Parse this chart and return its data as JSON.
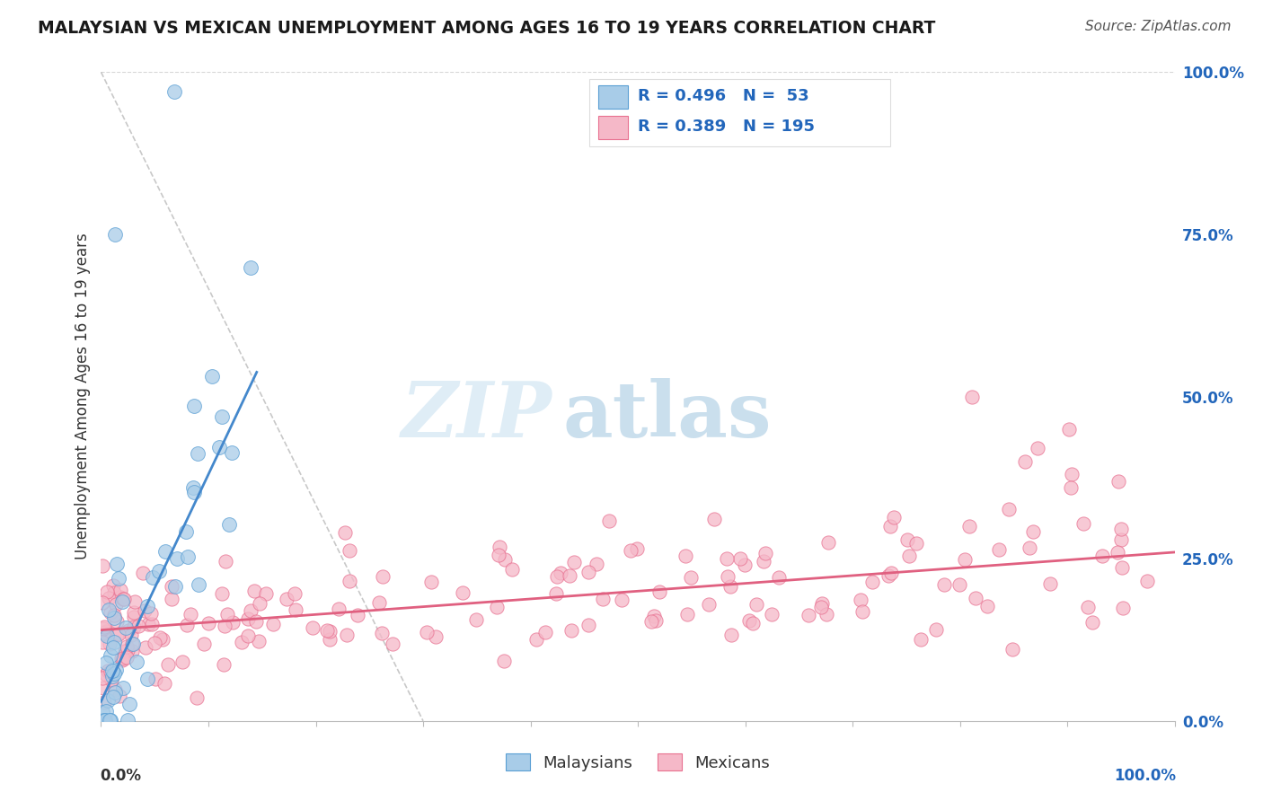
{
  "title": "MALAYSIAN VS MEXICAN UNEMPLOYMENT AMONG AGES 16 TO 19 YEARS CORRELATION CHART",
  "source_text": "Source: ZipAtlas.com",
  "watermark_zip": "ZIP",
  "watermark_atlas": "atlas",
  "ylabel": "Unemployment Among Ages 16 to 19 years",
  "malaysian_R": 0.496,
  "malaysian_N": 53,
  "mexican_R": 0.389,
  "mexican_N": 195,
  "blue_fill": "#a8cce8",
  "blue_edge": "#5a9fd4",
  "blue_line": "#4488cc",
  "pink_fill": "#f5b8c8",
  "pink_edge": "#e87090",
  "pink_line": "#e06080",
  "dash_color": "#bbbbbb",
  "title_color": "#1a1a1a",
  "legend_color": "#2266bb",
  "right_tick_color": "#2266bb",
  "source_color": "#555555",
  "bg_color": "#ffffff",
  "watermark_color": "#ccddf0",
  "xlim": [
    0,
    1
  ],
  "ylim": [
    0,
    1
  ],
  "right_yticks": [
    0.0,
    0.25,
    0.5,
    0.75,
    1.0
  ],
  "right_yticklabels": [
    "0.0%",
    "25.0%",
    "50.0%",
    "75.0%",
    "100.0%"
  ]
}
